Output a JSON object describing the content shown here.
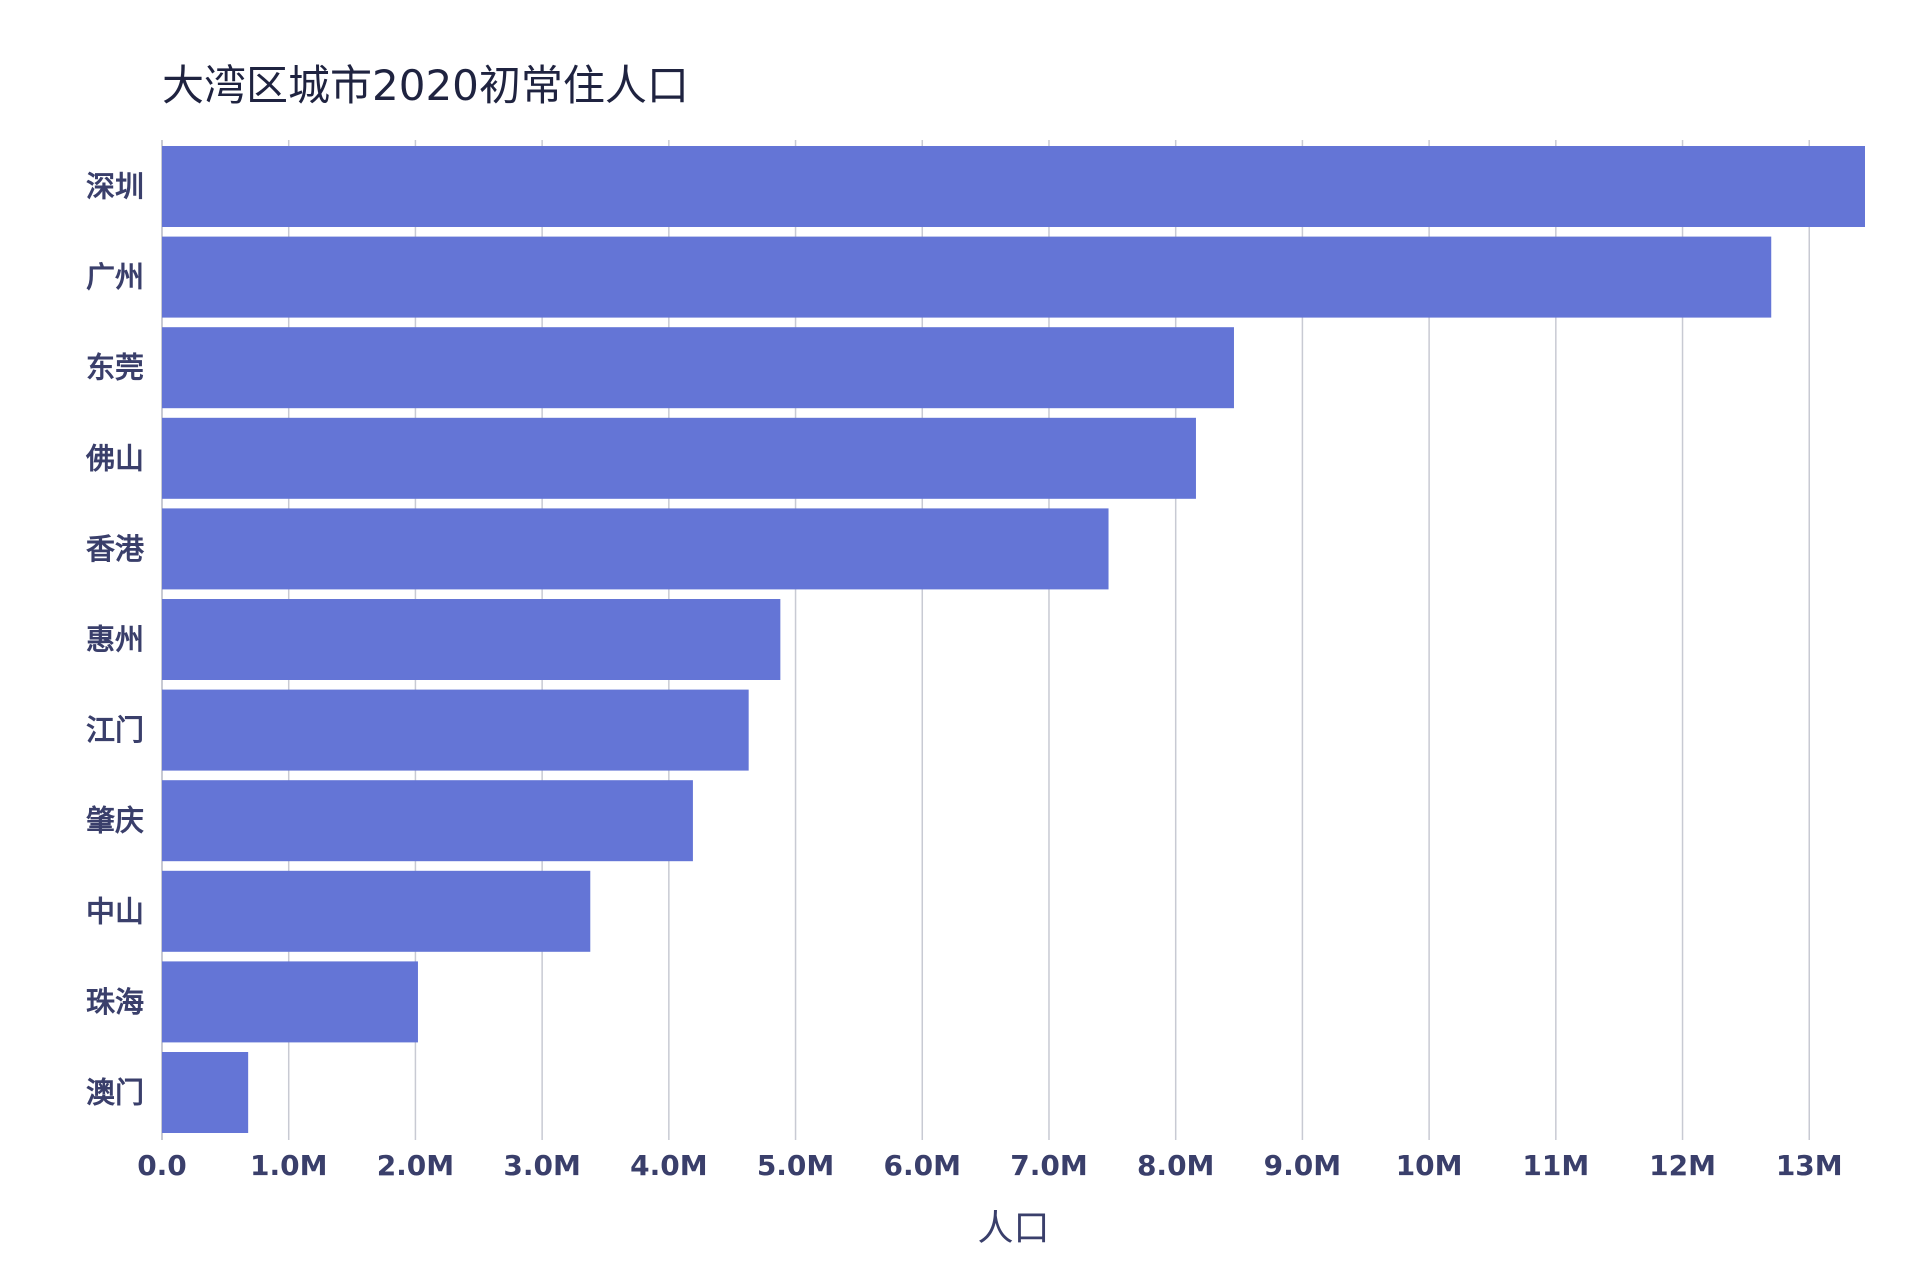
{
  "chart_data": {
    "type": "bar",
    "orientation": "horizontal",
    "title": "大湾区城市2020初常住人口",
    "xlabel": "人口",
    "ylabel": "",
    "categories": [
      "深圳",
      "广州",
      "东莞",
      "佛山",
      "香港",
      "惠州",
      "江门",
      "肇庆",
      "中山",
      "珠海",
      "澳门"
    ],
    "values": [
      13440000,
      12700000,
      8460000,
      8160000,
      7470000,
      4880000,
      4630000,
      4190000,
      3380000,
      2020000,
      680000
    ],
    "xlim": [
      0,
      13440000
    ],
    "x_ticks": [
      0,
      1000000,
      2000000,
      3000000,
      4000000,
      5000000,
      6000000,
      7000000,
      8000000,
      9000000,
      10000000,
      11000000,
      12000000,
      13000000
    ],
    "x_tick_labels": [
      "0.0",
      "1.0M",
      "2.0M",
      "3.0M",
      "4.0M",
      "5.0M",
      "6.0M",
      "7.0M",
      "8.0M",
      "9.0M",
      "10M",
      "11M",
      "12M",
      "13M"
    ],
    "grid": "vertical",
    "bar_color": "#6475d6",
    "grid_color": "#c8cad3",
    "text_color": "#3a3f6b"
  }
}
